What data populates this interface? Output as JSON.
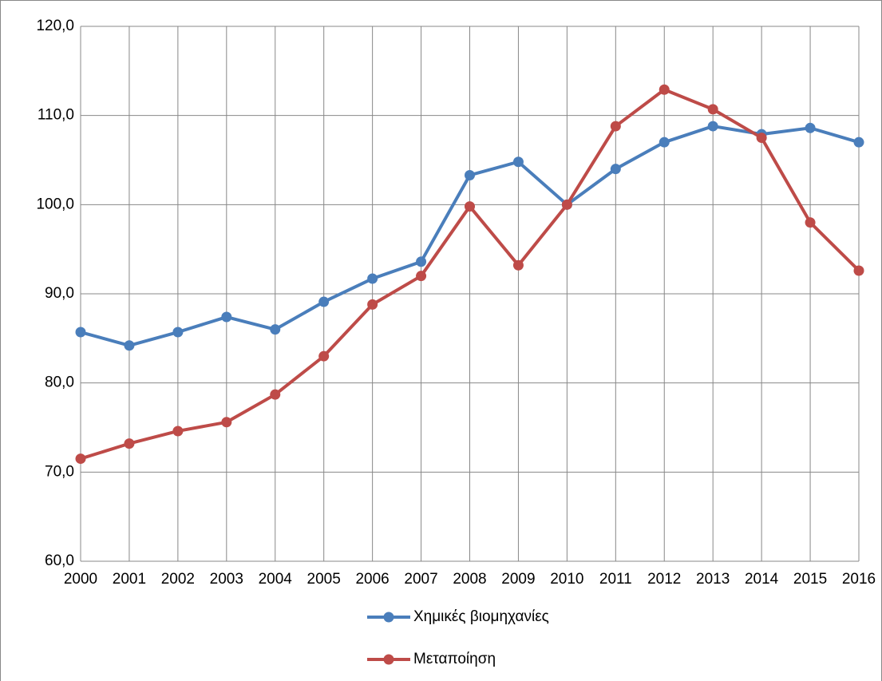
{
  "chart_data": {
    "type": "line",
    "categories": [
      "2000",
      "2001",
      "2002",
      "2003",
      "2004",
      "2005",
      "2006",
      "2007",
      "2008",
      "2009",
      "2010",
      "2011",
      "2012",
      "2013",
      "2014",
      "2015",
      "2016"
    ],
    "series": [
      {
        "name": "Χημικές βιομηχανίες",
        "color": "#4a7ebb",
        "values": [
          85.7,
          84.2,
          85.7,
          87.4,
          86.0,
          89.1,
          91.7,
          93.6,
          103.3,
          104.8,
          100.0,
          104.0,
          107.0,
          108.8,
          107.9,
          108.6,
          107.0
        ]
      },
      {
        "name": "Μεταποίηση",
        "color": "#be4b48",
        "values": [
          71.5,
          73.2,
          74.6,
          75.6,
          78.7,
          83.0,
          88.8,
          92.0,
          99.8,
          93.2,
          100.0,
          108.8,
          112.9,
          110.7,
          107.5,
          98.0,
          92.6
        ]
      }
    ],
    "ylim": [
      60,
      120
    ],
    "yticks": [
      {
        "value": 60,
        "label": "60,0"
      },
      {
        "value": 70,
        "label": "70,0"
      },
      {
        "value": 80,
        "label": "80,0"
      },
      {
        "value": 90,
        "label": "90,0"
      },
      {
        "value": 100,
        "label": "100,0"
      },
      {
        "value": 110,
        "label": "110,0"
      },
      {
        "value": 120,
        "label": "120,0"
      }
    ],
    "grid": true
  }
}
